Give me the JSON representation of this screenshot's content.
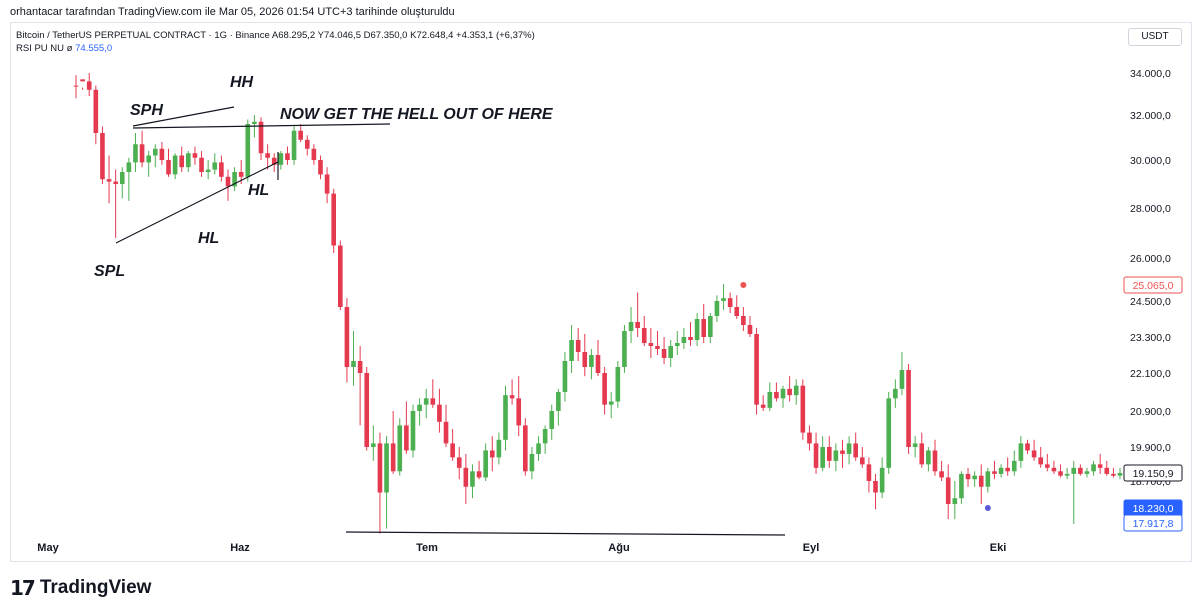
{
  "header": {
    "created_note": "orhantacar tarafından TradingView.com ile Mar 05, 2026 01:54 UTC+3 tarihinde oluşturuldu",
    "symbol_line": "Bitcoin / TetherUS PERPETUAL CONTRACT · 1G · Binance  A68.295,2  Y74.046,5  D67.350,0  K72.648,4  +4.353,1 (+6,37%)",
    "indicator_name": "RSI PU NU  ø",
    "indicator_value": "74.555,0",
    "currency": "USDT"
  },
  "logo": {
    "mark": "17",
    "name": "TradingView"
  },
  "chart_data": {
    "type": "candlestick",
    "x_labels": [
      "May",
      "Haz",
      "Tem",
      "Ağu",
      "Eyl",
      "Eki"
    ],
    "y_ticks": [
      "34.000,0",
      "32.000,0",
      "30.000,0",
      "28.000,0",
      "26.000,0",
      "24.500,0",
      "23.300,0",
      "22.100,0",
      "20.900,0",
      "19.900,0",
      "18.700,0"
    ],
    "price_labels": [
      {
        "text": "25.065,0",
        "value": 25065,
        "style": "red-outline"
      },
      {
        "text": "19.150,9",
        "value": 19150.9,
        "style": "dark-outline"
      },
      {
        "text": "18.230,0",
        "value": 18230,
        "style": "blue-fill"
      },
      {
        "text": "17.917,8",
        "value": 17917.8,
        "style": "blue-outline"
      }
    ],
    "annotations": [
      "SPH",
      "HH",
      "NOW GET THE HELL OUT OF HERE",
      "HL",
      "HL",
      "SPL"
    ],
    "colors": {
      "up": "#4caf50",
      "down": "#e53950",
      "marker_red": "#ef5350",
      "marker_blue": "#5b5bd6",
      "axis_blue": "#2962ff"
    },
    "candles": [
      {
        "o": 34600,
        "h": 35200,
        "l": 34100,
        "c": 34300
      },
      {
        "o": 34300,
        "h": 34700,
        "l": 33200,
        "c": 33600
      },
      {
        "o": 33600,
        "h": 34000,
        "l": 32900,
        "c": 33200
      },
      {
        "o": 33200,
        "h": 33400,
        "l": 30700,
        "c": 31200
      },
      {
        "o": 31200,
        "h": 31500,
        "l": 29000,
        "c": 29200
      },
      {
        "o": 29200,
        "h": 30200,
        "l": 28200,
        "c": 29100
      },
      {
        "o": 29100,
        "h": 29600,
        "l": 26800,
        "c": 29000
      },
      {
        "o": 29000,
        "h": 29700,
        "l": 28400,
        "c": 29500
      },
      {
        "o": 29500,
        "h": 30100,
        "l": 28300,
        "c": 29900
      },
      {
        "o": 29900,
        "h": 31200,
        "l": 29500,
        "c": 30700
      },
      {
        "o": 30700,
        "h": 31300,
        "l": 29700,
        "c": 29900
      },
      {
        "o": 29900,
        "h": 30400,
        "l": 29300,
        "c": 30200
      },
      {
        "o": 30200,
        "h": 30700,
        "l": 29700,
        "c": 30500
      },
      {
        "o": 30500,
        "h": 30800,
        "l": 29800,
        "c": 30000
      },
      {
        "o": 30000,
        "h": 30500,
        "l": 29300,
        "c": 29400
      },
      {
        "o": 29400,
        "h": 30300,
        "l": 29200,
        "c": 30200
      },
      {
        "o": 30200,
        "h": 30600,
        "l": 29500,
        "c": 29700
      },
      {
        "o": 29700,
        "h": 30400,
        "l": 29500,
        "c": 30300
      },
      {
        "o": 30300,
        "h": 30600,
        "l": 29800,
        "c": 30100
      },
      {
        "o": 30100,
        "h": 30400,
        "l": 29300,
        "c": 29500
      },
      {
        "o": 29500,
        "h": 30000,
        "l": 29200,
        "c": 29600
      },
      {
        "o": 29600,
        "h": 30300,
        "l": 29400,
        "c": 29900
      },
      {
        "o": 29900,
        "h": 30200,
        "l": 29100,
        "c": 29300
      },
      {
        "o": 29300,
        "h": 29600,
        "l": 28300,
        "c": 28900
      },
      {
        "o": 28900,
        "h": 29700,
        "l": 28700,
        "c": 29500
      },
      {
        "o": 29500,
        "h": 30000,
        "l": 29000,
        "c": 29300
      },
      {
        "o": 29300,
        "h": 31800,
        "l": 29100,
        "c": 31600
      },
      {
        "o": 31600,
        "h": 32000,
        "l": 31000,
        "c": 31700
      },
      {
        "o": 31700,
        "h": 31900,
        "l": 30000,
        "c": 30300
      },
      {
        "o": 30300,
        "h": 30700,
        "l": 29600,
        "c": 30100
      },
      {
        "o": 30100,
        "h": 30300,
        "l": 29500,
        "c": 29800
      },
      {
        "o": 29800,
        "h": 30400,
        "l": 29600,
        "c": 30300
      },
      {
        "o": 30300,
        "h": 30600,
        "l": 29800,
        "c": 30000
      },
      {
        "o": 30000,
        "h": 31500,
        "l": 29800,
        "c": 31300
      },
      {
        "o": 31300,
        "h": 31600,
        "l": 30800,
        "c": 30900
      },
      {
        "o": 30900,
        "h": 31100,
        "l": 30200,
        "c": 30500
      },
      {
        "o": 30500,
        "h": 30700,
        "l": 29800,
        "c": 30000
      },
      {
        "o": 30000,
        "h": 30200,
        "l": 29200,
        "c": 29400
      },
      {
        "o": 29400,
        "h": 29700,
        "l": 28200,
        "c": 28600
      },
      {
        "o": 28600,
        "h": 28800,
        "l": 26200,
        "c": 26500
      },
      {
        "o": 26500,
        "h": 26700,
        "l": 24200,
        "c": 24300
      },
      {
        "o": 24300,
        "h": 24600,
        "l": 21800,
        "c": 22300
      },
      {
        "o": 22300,
        "h": 23500,
        "l": 21700,
        "c": 22500
      },
      {
        "o": 22500,
        "h": 23000,
        "l": 20500,
        "c": 22100
      },
      {
        "o": 22100,
        "h": 22300,
        "l": 19800,
        "c": 19900
      },
      {
        "o": 19900,
        "h": 20500,
        "l": 19500,
        "c": 20000
      },
      {
        "o": 20000,
        "h": 20300,
        "l": 17700,
        "c": 18500
      },
      {
        "o": 18500,
        "h": 20200,
        "l": 17800,
        "c": 20000
      },
      {
        "o": 20000,
        "h": 20900,
        "l": 19100,
        "c": 19200
      },
      {
        "o": 19200,
        "h": 20700,
        "l": 19000,
        "c": 20500
      },
      {
        "o": 20500,
        "h": 21200,
        "l": 19700,
        "c": 19800
      },
      {
        "o": 19800,
        "h": 21100,
        "l": 19600,
        "c": 20900
      },
      {
        "o": 20900,
        "h": 21300,
        "l": 20500,
        "c": 21100
      },
      {
        "o": 21100,
        "h": 21600,
        "l": 20700,
        "c": 21300
      },
      {
        "o": 21300,
        "h": 21900,
        "l": 21000,
        "c": 21100
      },
      {
        "o": 21100,
        "h": 21600,
        "l": 20300,
        "c": 20600
      },
      {
        "o": 20600,
        "h": 21100,
        "l": 19900,
        "c": 20000
      },
      {
        "o": 20000,
        "h": 20400,
        "l": 19500,
        "c": 19600
      },
      {
        "o": 19600,
        "h": 19900,
        "l": 18800,
        "c": 19300
      },
      {
        "o": 19300,
        "h": 19700,
        "l": 18300,
        "c": 18600
      },
      {
        "o": 18600,
        "h": 19400,
        "l": 18400,
        "c": 19200
      },
      {
        "o": 19200,
        "h": 19500,
        "l": 18800,
        "c": 18900
      },
      {
        "o": 18900,
        "h": 20000,
        "l": 18700,
        "c": 19800
      },
      {
        "o": 19800,
        "h": 20200,
        "l": 19200,
        "c": 19600
      },
      {
        "o": 19600,
        "h": 20300,
        "l": 19400,
        "c": 20100
      },
      {
        "o": 20100,
        "h": 21700,
        "l": 19800,
        "c": 21400
      },
      {
        "o": 21400,
        "h": 21900,
        "l": 21100,
        "c": 21300
      },
      {
        "o": 21300,
        "h": 22000,
        "l": 20200,
        "c": 20500
      },
      {
        "o": 20500,
        "h": 20700,
        "l": 19000,
        "c": 19200
      },
      {
        "o": 19200,
        "h": 19900,
        "l": 18800,
        "c": 19700
      },
      {
        "o": 19700,
        "h": 20200,
        "l": 19500,
        "c": 20000
      },
      {
        "o": 20000,
        "h": 20500,
        "l": 19700,
        "c": 20400
      },
      {
        "o": 20400,
        "h": 21100,
        "l": 20100,
        "c": 20900
      },
      {
        "o": 20900,
        "h": 21600,
        "l": 20500,
        "c": 21500
      },
      {
        "o": 21500,
        "h": 22800,
        "l": 21200,
        "c": 22500
      },
      {
        "o": 22500,
        "h": 23700,
        "l": 22100,
        "c": 23200
      },
      {
        "o": 23200,
        "h": 23600,
        "l": 22500,
        "c": 22800
      },
      {
        "o": 22800,
        "h": 23400,
        "l": 22000,
        "c": 22300
      },
      {
        "o": 22300,
        "h": 22900,
        "l": 21900,
        "c": 22700
      },
      {
        "o": 22700,
        "h": 23200,
        "l": 22000,
        "c": 22100
      },
      {
        "o": 22100,
        "h": 22300,
        "l": 20800,
        "c": 21100
      },
      {
        "o": 21100,
        "h": 21500,
        "l": 20700,
        "c": 21200
      },
      {
        "o": 21200,
        "h": 22500,
        "l": 21000,
        "c": 22300
      },
      {
        "o": 22300,
        "h": 23700,
        "l": 22100,
        "c": 23500
      },
      {
        "o": 23500,
        "h": 24300,
        "l": 23100,
        "c": 23800
      },
      {
        "o": 23800,
        "h": 24800,
        "l": 23300,
        "c": 23600
      },
      {
        "o": 23600,
        "h": 24000,
        "l": 23000,
        "c": 23100
      },
      {
        "o": 23100,
        "h": 23600,
        "l": 22600,
        "c": 23000
      },
      {
        "o": 23000,
        "h": 23500,
        "l": 22700,
        "c": 22900
      },
      {
        "o": 22900,
        "h": 23300,
        "l": 22400,
        "c": 22600
      },
      {
        "o": 22600,
        "h": 23200,
        "l": 22300,
        "c": 23000
      },
      {
        "o": 23000,
        "h": 23500,
        "l": 22700,
        "c": 23100
      },
      {
        "o": 23100,
        "h": 23600,
        "l": 22900,
        "c": 23300
      },
      {
        "o": 23300,
        "h": 23800,
        "l": 23000,
        "c": 23200
      },
      {
        "o": 23200,
        "h": 24100,
        "l": 23000,
        "c": 23900
      },
      {
        "o": 23900,
        "h": 24400,
        "l": 23100,
        "c": 23300
      },
      {
        "o": 23300,
        "h": 24100,
        "l": 23100,
        "c": 24000
      },
      {
        "o": 24000,
        "h": 24700,
        "l": 23800,
        "c": 24500
      },
      {
        "o": 24500,
        "h": 25100,
        "l": 24200,
        "c": 24600
      },
      {
        "o": 24600,
        "h": 24800,
        "l": 24100,
        "c": 24300
      },
      {
        "o": 24300,
        "h": 24700,
        "l": 23900,
        "c": 24000
      },
      {
        "o": 24000,
        "h": 24300,
        "l": 23500,
        "c": 23700
      },
      {
        "o": 23700,
        "h": 24000,
        "l": 23300,
        "c": 23400
      },
      {
        "o": 23400,
        "h": 23600,
        "l": 20800,
        "c": 21100
      },
      {
        "o": 21100,
        "h": 21400,
        "l": 20900,
        "c": 21000
      },
      {
        "o": 21000,
        "h": 21800,
        "l": 20900,
        "c": 21500
      },
      {
        "o": 21500,
        "h": 21800,
        "l": 21200,
        "c": 21300
      },
      {
        "o": 21300,
        "h": 21700,
        "l": 21000,
        "c": 21600
      },
      {
        "o": 21600,
        "h": 22000,
        "l": 21200,
        "c": 21400
      },
      {
        "o": 21400,
        "h": 21900,
        "l": 21100,
        "c": 21700
      },
      {
        "o": 21700,
        "h": 21900,
        "l": 20100,
        "c": 20300
      },
      {
        "o": 20300,
        "h": 20500,
        "l": 19800,
        "c": 20000
      },
      {
        "o": 20000,
        "h": 20300,
        "l": 19100,
        "c": 19300
      },
      {
        "o": 19300,
        "h": 20200,
        "l": 19200,
        "c": 19900
      },
      {
        "o": 19900,
        "h": 20200,
        "l": 19300,
        "c": 19500
      },
      {
        "o": 19500,
        "h": 20000,
        "l": 19200,
        "c": 19800
      },
      {
        "o": 19800,
        "h": 20100,
        "l": 19300,
        "c": 19700
      },
      {
        "o": 19700,
        "h": 20200,
        "l": 19400,
        "c": 20000
      },
      {
        "o": 20000,
        "h": 20300,
        "l": 19500,
        "c": 19600
      },
      {
        "o": 19600,
        "h": 19900,
        "l": 19300,
        "c": 19400
      },
      {
        "o": 19400,
        "h": 19600,
        "l": 18500,
        "c": 18700
      },
      {
        "o": 18700,
        "h": 19100,
        "l": 18200,
        "c": 18500
      },
      {
        "o": 18500,
        "h": 19600,
        "l": 18400,
        "c": 19300
      },
      {
        "o": 19300,
        "h": 21500,
        "l": 19100,
        "c": 21300
      },
      {
        "o": 21300,
        "h": 21900,
        "l": 21000,
        "c": 21600
      },
      {
        "o": 21600,
        "h": 22800,
        "l": 21400,
        "c": 22200
      },
      {
        "o": 22200,
        "h": 22400,
        "l": 19700,
        "c": 19900
      },
      {
        "o": 19900,
        "h": 20200,
        "l": 19600,
        "c": 20000
      },
      {
        "o": 20000,
        "h": 20300,
        "l": 19300,
        "c": 19400
      },
      {
        "o": 19400,
        "h": 19900,
        "l": 19200,
        "c": 19800
      },
      {
        "o": 19800,
        "h": 20100,
        "l": 19000,
        "c": 19200
      },
      {
        "o": 19200,
        "h": 19500,
        "l": 18700,
        "c": 18900
      },
      {
        "o": 18900,
        "h": 19400,
        "l": 18000,
        "c": 18300
      },
      {
        "o": 18300,
        "h": 18700,
        "l": 18000,
        "c": 18400
      },
      {
        "o": 18400,
        "h": 19200,
        "l": 18300,
        "c": 19100
      },
      {
        "o": 19100,
        "h": 19300,
        "l": 18600,
        "c": 18800
      },
      {
        "o": 18800,
        "h": 19200,
        "l": 18600,
        "c": 19000
      },
      {
        "o": 19000,
        "h": 19400,
        "l": 18300,
        "c": 18600
      },
      {
        "o": 18600,
        "h": 19300,
        "l": 18500,
        "c": 19200
      },
      {
        "o": 19200,
        "h": 19500,
        "l": 18800,
        "c": 19100
      },
      {
        "o": 19100,
        "h": 19400,
        "l": 18900,
        "c": 19300
      },
      {
        "o": 19300,
        "h": 19600,
        "l": 19000,
        "c": 19200
      },
      {
        "o": 19200,
        "h": 19800,
        "l": 19000,
        "c": 19500
      },
      {
        "o": 19500,
        "h": 20200,
        "l": 19300,
        "c": 20000
      },
      {
        "o": 20000,
        "h": 20100,
        "l": 19700,
        "c": 19800
      },
      {
        "o": 19800,
        "h": 20100,
        "l": 19500,
        "c": 19600
      },
      {
        "o": 19600,
        "h": 19900,
        "l": 19300,
        "c": 19400
      },
      {
        "o": 19400,
        "h": 19700,
        "l": 19200,
        "c": 19300
      },
      {
        "o": 19300,
        "h": 19500,
        "l": 19100,
        "c": 19200
      },
      {
        "o": 19200,
        "h": 19400,
        "l": 18900,
        "c": 19000
      },
      {
        "o": 19000,
        "h": 19300,
        "l": 18800,
        "c": 19100
      },
      {
        "o": 19100,
        "h": 19500,
        "l": 17900,
        "c": 19300
      },
      {
        "o": 19300,
        "h": 19400,
        "l": 19000,
        "c": 19100
      },
      {
        "o": 19100,
        "h": 19300,
        "l": 18900,
        "c": 19200
      },
      {
        "o": 19200,
        "h": 19500,
        "l": 19000,
        "c": 19400
      },
      {
        "o": 19400,
        "h": 19700,
        "l": 19100,
        "c": 19300
      },
      {
        "o": 19300,
        "h": 19500,
        "l": 19000,
        "c": 19100
      },
      {
        "o": 19100,
        "h": 19300,
        "l": 18900,
        "c": 19000
      },
      {
        "o": 19000,
        "h": 19300,
        "l": 18800,
        "c": 19150.9
      }
    ]
  }
}
